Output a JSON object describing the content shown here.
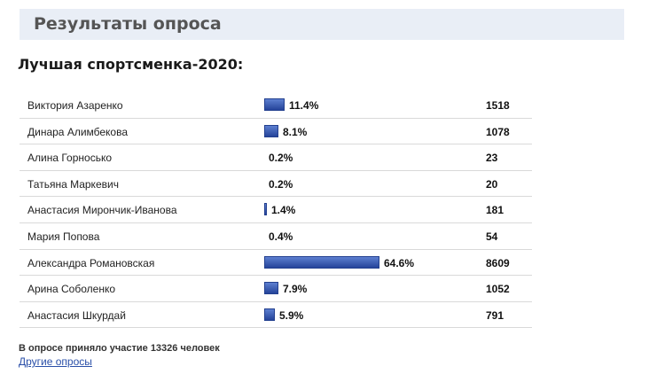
{
  "header": {
    "title": "Результаты опроса"
  },
  "poll": {
    "title": "Лучшая спортсменка-2020:",
    "options": [
      {
        "name": "Виктория Азаренко",
        "percent_label": "11.4%",
        "percent": 11.4,
        "votes": "1518"
      },
      {
        "name": "Динара Алимбекова",
        "percent_label": "8.1%",
        "percent": 8.1,
        "votes": "1078"
      },
      {
        "name": "Алина Горносько",
        "percent_label": "0.2%",
        "percent": 0.2,
        "votes": "23"
      },
      {
        "name": "Татьяна Маркевич",
        "percent_label": "0.2%",
        "percent": 0.2,
        "votes": "20"
      },
      {
        "name": "Анастасия Мирончик-Иванова",
        "percent_label": "1.4%",
        "percent": 1.4,
        "votes": "181"
      },
      {
        "name": "Мария Попова",
        "percent_label": "0.4%",
        "percent": 0.4,
        "votes": "54"
      },
      {
        "name": "Александра Романовская",
        "percent_label": "64.6%",
        "percent": 64.6,
        "votes": "8609"
      },
      {
        "name": "Арина Соболенко",
        "percent_label": "7.9%",
        "percent": 7.9,
        "votes": "1052"
      },
      {
        "name": "Анастасия Шкурдай",
        "percent_label": "5.9%",
        "percent": 5.9,
        "votes": "791"
      }
    ],
    "participants_text": "В опросе приняло участие 13326 человек",
    "other_polls_link": "Другие опросы"
  },
  "colors": {
    "bar": "#2f4fa6",
    "header_bg": "#e9eef6",
    "link": "#2a4fa8"
  }
}
